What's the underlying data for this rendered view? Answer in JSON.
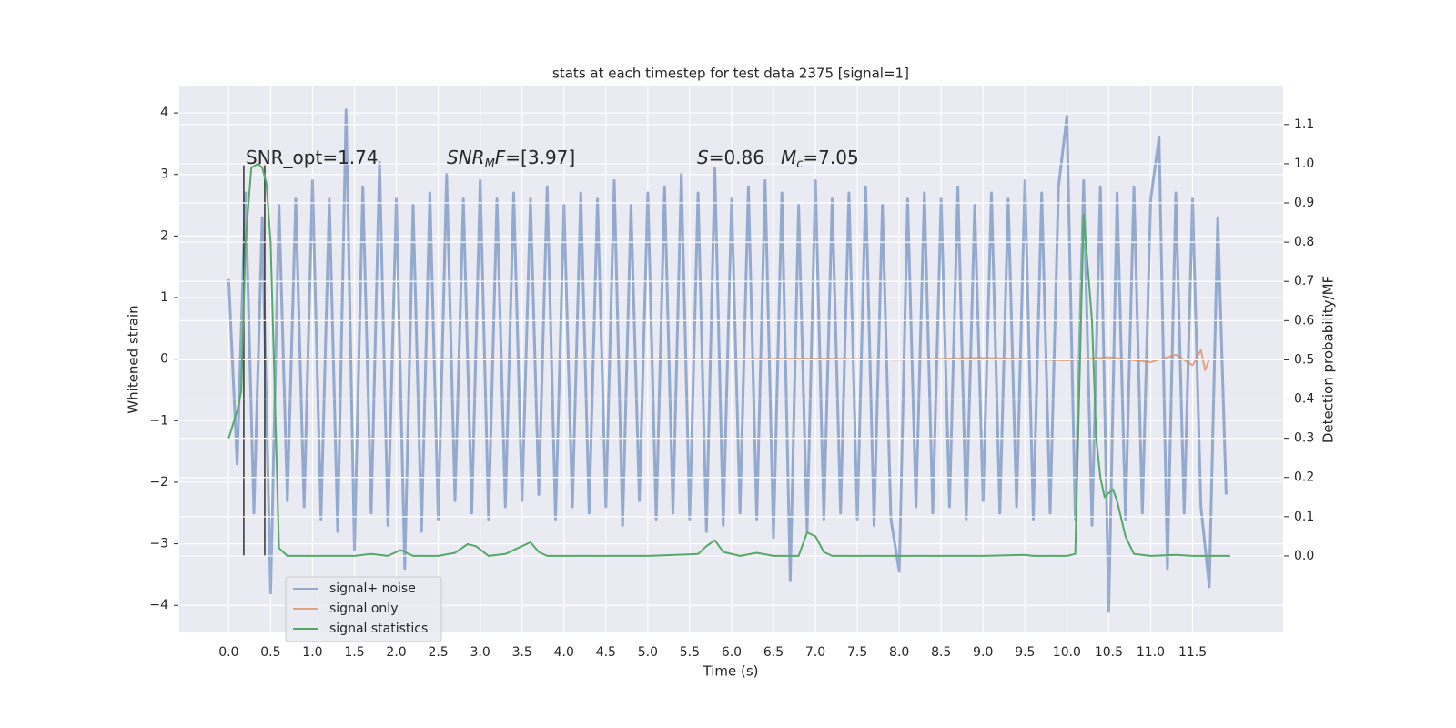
{
  "chart_data": {
    "type": "line",
    "title": "stats at each timestep for test data 2375 [signal=1]",
    "xlabel": "Time (s)",
    "ylabel": "Whitened strain",
    "y2label": "Detection probability/MF",
    "xlim": [
      -0.59,
      12.58
    ],
    "ylim": [
      -4.44,
      4.43
    ],
    "y2lim": [
      -0.195,
      1.197
    ],
    "xticks": [
      {
        "value": 0,
        "label": "0.0"
      },
      {
        "value": 0.5,
        "label": "0.5"
      },
      {
        "value": 1,
        "label": "1.0"
      },
      {
        "value": 1.5,
        "label": "1.5"
      },
      {
        "value": 2,
        "label": "2.0"
      },
      {
        "value": 2.5,
        "label": "2.5"
      },
      {
        "value": 3,
        "label": "3.0"
      },
      {
        "value": 3.5,
        "label": "3.5"
      },
      {
        "value": 4,
        "label": "4.0"
      },
      {
        "value": 4.5,
        "label": "4.5"
      },
      {
        "value": 5,
        "label": "5.0"
      },
      {
        "value": 5.5,
        "label": "5.5"
      },
      {
        "value": 6,
        "label": "6.0"
      },
      {
        "value": 6.5,
        "label": "6.5"
      },
      {
        "value": 7,
        "label": "7.0"
      },
      {
        "value": 7.5,
        "label": "7.5"
      },
      {
        "value": 8,
        "label": "8.0"
      },
      {
        "value": 8.5,
        "label": "8.5"
      },
      {
        "value": 9,
        "label": "9.0"
      },
      {
        "value": 9.5,
        "label": "9.5"
      },
      {
        "value": 10,
        "label": "10.0"
      },
      {
        "value": 10.5,
        "label": "10.5"
      },
      {
        "value": 11,
        "label": "11.0"
      },
      {
        "value": 11.5,
        "label": "11.5"
      }
    ],
    "yticks": [
      {
        "value": -4,
        "label": "−4"
      },
      {
        "value": -3,
        "label": "−3"
      },
      {
        "value": -2,
        "label": "−2"
      },
      {
        "value": -1,
        "label": "−1"
      },
      0,
      1,
      2,
      3,
      4
    ],
    "y2ticks": [
      {
        "value": 0,
        "label": "0.0"
      },
      {
        "value": 0.1,
        "label": "0.1"
      },
      {
        "value": 0.2,
        "label": "0.2"
      },
      {
        "value": 0.3,
        "label": "0.3"
      },
      {
        "value": 0.4,
        "label": "0.4"
      },
      {
        "value": 0.5,
        "label": "0.5"
      },
      {
        "value": 0.6,
        "label": "0.6"
      },
      {
        "value": 0.7,
        "label": "0.7"
      },
      {
        "value": 0.8,
        "label": "0.8"
      },
      {
        "value": 0.9,
        "label": "0.9"
      },
      {
        "value": 1,
        "label": "1.0"
      },
      {
        "value": 1.1,
        "label": "1.1"
      }
    ],
    "grid": true,
    "legend": "lower left",
    "series": [
      {
        "name": "signal+ noise",
        "color": "#4c72b0",
        "alpha": 0.55,
        "x": [
          0,
          0.1,
          0.2,
          0.3,
          0.4,
          0.5,
          0.6,
          0.7,
          0.8,
          0.9,
          1,
          1.1,
          1.2,
          1.3,
          1.4,
          1.5,
          1.6,
          1.7,
          1.8,
          1.9,
          2,
          2.1,
          2.2,
          2.3,
          2.4,
          2.5,
          2.6,
          2.7,
          2.8,
          2.9,
          3,
          3.1,
          3.2,
          3.3,
          3.4,
          3.5,
          3.6,
          3.7,
          3.8,
          3.9,
          4,
          4.1,
          4.2,
          4.3,
          4.4,
          4.5,
          4.6,
          4.7,
          4.8,
          4.9,
          5,
          5.1,
          5.2,
          5.3,
          5.4,
          5.5,
          5.6,
          5.7,
          5.8,
          5.9,
          6,
          6.1,
          6.2,
          6.3,
          6.4,
          6.5,
          6.6,
          6.7,
          6.8,
          6.9,
          7,
          7.1,
          7.2,
          7.3,
          7.4,
          7.5,
          7.6,
          7.7,
          7.8,
          7.9,
          8,
          8.1,
          8.2,
          8.3,
          8.4,
          8.5,
          8.6,
          8.7,
          8.8,
          8.9,
          9,
          9.1,
          9.2,
          9.3,
          9.4,
          9.5,
          9.6,
          9.7,
          9.8,
          9.9,
          10,
          10.1,
          10.2,
          10.3,
          10.4,
          10.5,
          10.6,
          10.7,
          10.8,
          10.9,
          11,
          11.1,
          11.2,
          11.3,
          11.4,
          11.5,
          11.6,
          11.7,
          11.8,
          11.9
        ],
        "values": [
          1.3,
          -1.7,
          2.7,
          -2.5,
          2.3,
          -3.8,
          2.5,
          -2.3,
          2.6,
          -2.4,
          2.9,
          -2.6,
          2.6,
          -2.8,
          4.05,
          -3.1,
          2.8,
          -2.5,
          3.2,
          -2.7,
          2.6,
          -3.4,
          2.5,
          -2.8,
          2.7,
          -2.6,
          3.0,
          -2.3,
          2.6,
          -2.5,
          2.9,
          -2.6,
          2.6,
          -2.4,
          2.7,
          -2.3,
          2.6,
          -2.2,
          2.8,
          -2.6,
          2.5,
          -2.4,
          2.7,
          -2.5,
          2.6,
          -2.4,
          2.9,
          -2.7,
          2.5,
          -2.3,
          2.7,
          -2.6,
          2.8,
          -2.5,
          3.0,
          -2.6,
          2.7,
          -2.8,
          3.1,
          -2.7,
          2.6,
          -2.5,
          2.8,
          -2.6,
          2.9,
          -2.9,
          2.7,
          -3.6,
          2.5,
          -2.8,
          2.9,
          -2.6,
          2.6,
          -2.5,
          2.7,
          -2.6,
          2.8,
          -2.7,
          2.5,
          -2.6,
          -3.45,
          2.6,
          -2.4,
          2.7,
          -2.5,
          2.6,
          -2.4,
          2.8,
          -2.6,
          2.5,
          -2.3,
          2.7,
          -2.5,
          2.6,
          -2.4,
          2.9,
          -2.6,
          2.7,
          -2.5,
          2.8,
          3.95,
          -2.6,
          2.9,
          -2.7,
          2.8,
          -4.1,
          2.7,
          -2.6,
          2.8,
          -2.5,
          2.6,
          3.6,
          -3.4,
          2.7,
          -2.5,
          2.6,
          -2.4,
          -3.7,
          2.3,
          -2.2
        ]
      },
      {
        "name": "signal only",
        "color": "#dd8452",
        "alpha": 0.7,
        "x": [
          0,
          1,
          2,
          3,
          4,
          5,
          6,
          7,
          8,
          9,
          10,
          10.5,
          11,
          11.3,
          11.5,
          11.6,
          11.65,
          11.7
        ],
        "values": [
          0,
          0,
          0,
          0,
          0,
          0,
          0,
          0.01,
          -0.01,
          0.02,
          -0.02,
          0.03,
          -0.05,
          0.07,
          -0.1,
          0.15,
          -0.18,
          0
        ]
      },
      {
        "name": "signal statistics",
        "color": "#55a868",
        "axis": "y2",
        "x": [
          0,
          0.1,
          0.15,
          0.2,
          0.27,
          0.35,
          0.4,
          0.45,
          0.5,
          0.6,
          0.7,
          0.8,
          1,
          1.5,
          1.7,
          1.9,
          2.05,
          2.2,
          2.5,
          2.7,
          2.85,
          2.95,
          3.1,
          3.3,
          3.45,
          3.6,
          3.7,
          3.8,
          4,
          5,
          5.6,
          5.7,
          5.8,
          5.9,
          6.1,
          6.3,
          6.5,
          6.8,
          6.9,
          7,
          7.1,
          7.2,
          8,
          9,
          9.5,
          9.6,
          10,
          10.1,
          10.2,
          10.3,
          10.35,
          10.4,
          10.45,
          10.55,
          10.6,
          10.7,
          10.8,
          11,
          11.3,
          11.5,
          11.95
        ],
        "values": [
          0.3,
          0.37,
          0.42,
          0.8,
          0.99,
          1.0,
          0.99,
          0.95,
          0.8,
          0.02,
          0,
          0,
          0,
          0,
          0.005,
          0,
          0.015,
          0,
          0,
          0.008,
          0.03,
          0.025,
          0,
          0.005,
          0.02,
          0.035,
          0.01,
          0,
          0,
          0,
          0.005,
          0.025,
          0.04,
          0.01,
          0,
          0.008,
          0,
          0,
          0.06,
          0.05,
          0.01,
          0,
          0,
          0,
          0.003,
          0,
          0,
          0.005,
          0.87,
          0.6,
          0.3,
          0.2,
          0.15,
          0.17,
          0.14,
          0.05,
          0.005,
          0,
          0.003,
          0,
          0
        ]
      }
    ],
    "vlines": [
      0.18,
      0.43
    ],
    "vline_range": [
      -3.2,
      3.15
    ],
    "vline_color": "#333333",
    "annotations": [
      {
        "parts": [
          {
            "text": "SNR_opt=1.74"
          }
        ]
      },
      {
        "parts": [
          {
            "text": "SNR",
            "italic": true
          },
          {
            "text": "M",
            "italic": true,
            "sub": true
          },
          {
            "text": "F",
            "italic": true
          },
          {
            "text": "=[3.97]"
          }
        ]
      },
      {
        "parts": [
          {
            "text": "S",
            "italic": true
          },
          {
            "text": "=0.86"
          }
        ]
      },
      {
        "parts": [
          {
            "text": "M",
            "italic": true
          },
          {
            "text": "c",
            "italic": true,
            "sub": true
          },
          {
            "text": "=7.05"
          }
        ]
      }
    ]
  }
}
